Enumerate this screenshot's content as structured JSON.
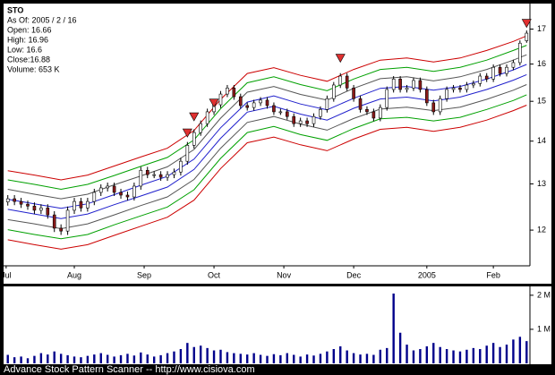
{
  "chart_data": {
    "type": "candlestick",
    "symbol": "STO",
    "info": [
      "As Of: 2005 / 2 / 16",
      "Open: 16.66",
      "High: 16.96",
      "Low: 16.6",
      "Close:16.88",
      "Volume: 653 K"
    ],
    "log_scale": true,
    "up_color": "#ffffff",
    "down_color": "#8b1a1a",
    "xlim": [
      -1,
      157
    ],
    "ylim": [
      11.28,
      17.74
    ],
    "xticks": [
      {
        "value": -0.5,
        "label": "Jul"
      },
      {
        "value": 20,
        "label": "Aug"
      },
      {
        "value": 41,
        "label": "Sep"
      },
      {
        "value": 62,
        "label": "Oct"
      },
      {
        "value": 83,
        "label": "Nov"
      },
      {
        "value": 104,
        "label": "Dec"
      },
      {
        "value": 126,
        "label": "2005"
      },
      {
        "value": 146,
        "label": "Feb"
      }
    ],
    "yticks": [
      12,
      13,
      14,
      15,
      16,
      17
    ],
    "x": [
      0,
      2,
      4,
      6,
      8,
      10,
      12,
      14,
      16,
      18,
      20,
      22,
      24,
      26,
      28,
      30,
      32,
      34,
      36,
      38,
      40,
      42,
      44,
      46,
      48,
      50,
      52,
      54,
      56,
      58,
      60,
      62,
      64,
      66,
      68,
      70,
      72,
      74,
      76,
      78,
      80,
      82,
      84,
      86,
      88,
      90,
      92,
      94,
      96,
      98,
      100,
      102,
      104,
      106,
      108,
      110,
      112,
      114,
      116,
      118,
      120,
      122,
      124,
      126,
      128,
      130,
      132,
      134,
      136,
      138,
      140,
      142,
      144,
      146,
      148,
      150,
      152,
      154,
      156
    ],
    "open": [
      12.6,
      12.67,
      12.61,
      12.55,
      12.51,
      12.42,
      12.47,
      12.32,
      12.04,
      11.98,
      12.42,
      12.61,
      12.47,
      12.61,
      12.81,
      12.91,
      12.95,
      12.81,
      12.75,
      12.71,
      12.95,
      13.31,
      13.21,
      13.21,
      13.15,
      13.21,
      13.27,
      13.52,
      13.9,
      14.21,
      14.43,
      14.73,
      14.91,
      15.19,
      15.35,
      15.12,
      14.89,
      14.84,
      14.96,
      15.03,
      14.89,
      14.73,
      14.73,
      14.61,
      14.43,
      14.5,
      14.43,
      14.61,
      14.79,
      15.07,
      15.43,
      15.67,
      15.35,
      15.07,
      14.79,
      14.73,
      14.57,
      14.84,
      15.31,
      15.59,
      15.31,
      15.35,
      15.55,
      15.31,
      14.96,
      14.73,
      15.07,
      15.31,
      15.35,
      15.31,
      15.43,
      15.47,
      15.67,
      15.59,
      15.91,
      15.74,
      15.91,
      16.04,
      16.66
    ],
    "high": [
      12.75,
      12.75,
      12.69,
      12.63,
      12.59,
      12.55,
      12.55,
      12.4,
      12.12,
      12.5,
      12.69,
      12.69,
      12.69,
      12.89,
      12.99,
      13.03,
      13.03,
      12.89,
      12.83,
      13.03,
      13.39,
      13.39,
      13.29,
      13.29,
      13.29,
      13.35,
      13.6,
      13.98,
      14.29,
      14.51,
      14.81,
      14.99,
      15.27,
      15.43,
      15.43,
      15.2,
      14.97,
      15.04,
      15.11,
      15.11,
      14.97,
      14.81,
      14.81,
      14.69,
      14.58,
      14.58,
      14.69,
      14.87,
      15.15,
      15.51,
      15.75,
      15.75,
      15.43,
      15.15,
      14.87,
      14.81,
      14.92,
      15.39,
      15.67,
      15.67,
      15.43,
      15.63,
      15.63,
      15.39,
      15.04,
      15.15,
      15.39,
      15.43,
      15.43,
      15.51,
      15.55,
      15.75,
      15.75,
      15.99,
      15.99,
      15.99,
      16.12,
      16.67,
      16.96
    ],
    "low": [
      12.52,
      12.53,
      12.47,
      12.43,
      12.34,
      12.34,
      12.24,
      11.96,
      11.9,
      11.9,
      12.34,
      12.39,
      12.39,
      12.53,
      12.73,
      12.83,
      12.73,
      12.67,
      12.63,
      12.63,
      12.87,
      13.13,
      13.13,
      13.07,
      13.07,
      13.13,
      13.19,
      13.44,
      13.82,
      14.13,
      14.35,
      14.65,
      14.83,
      15.11,
      15.04,
      14.81,
      14.76,
      14.76,
      14.88,
      14.81,
      14.65,
      14.65,
      14.53,
      14.35,
      14.35,
      14.35,
      14.35,
      14.53,
      14.71,
      14.99,
      15.35,
      15.27,
      14.99,
      14.71,
      14.65,
      14.49,
      14.49,
      14.76,
      15.23,
      15.23,
      15.23,
      15.27,
      15.23,
      14.88,
      14.65,
      14.65,
      14.99,
      15.23,
      15.23,
      15.23,
      15.35,
      15.39,
      15.51,
      15.51,
      15.66,
      15.66,
      15.83,
      15.96,
      16.6
    ],
    "close": [
      12.67,
      12.61,
      12.55,
      12.51,
      12.42,
      12.47,
      12.32,
      12.04,
      11.98,
      12.42,
      12.61,
      12.47,
      12.61,
      12.81,
      12.91,
      12.95,
      12.81,
      12.75,
      12.71,
      12.95,
      13.31,
      13.21,
      13.21,
      13.15,
      13.21,
      13.27,
      13.52,
      13.9,
      14.21,
      14.43,
      14.73,
      14.91,
      15.19,
      15.35,
      15.12,
      14.89,
      14.84,
      14.96,
      15.03,
      14.89,
      14.73,
      14.73,
      14.61,
      14.43,
      14.5,
      14.43,
      14.61,
      14.79,
      15.07,
      15.43,
      15.67,
      15.35,
      15.07,
      14.79,
      14.73,
      14.57,
      14.84,
      15.31,
      15.59,
      15.31,
      15.35,
      15.55,
      15.31,
      14.96,
      14.73,
      15.07,
      15.31,
      15.35,
      15.31,
      15.43,
      15.47,
      15.67,
      15.59,
      15.91,
      15.74,
      15.91,
      16.04,
      16.59,
      16.88
    ],
    "band_x": [
      0,
      8,
      16,
      24,
      32,
      40,
      48,
      56,
      64,
      72,
      80,
      88,
      96,
      104,
      112,
      120,
      128,
      136,
      144,
      152,
      156
    ],
    "bands": [
      {
        "color": "#cc0000",
        "values": [
          13.3,
          13.2,
          13.09,
          13.2,
          13.41,
          13.62,
          13.83,
          14.26,
          15.05,
          15.74,
          15.9,
          15.69,
          15.53,
          15.85,
          16.11,
          16.17,
          16.06,
          16.17,
          16.38,
          16.64,
          16.8
        ]
      },
      {
        "color": "#00a000",
        "values": [
          13.09,
          12.99,
          12.88,
          12.99,
          13.19,
          13.4,
          13.61,
          14.03,
          14.81,
          15.49,
          15.65,
          15.44,
          15.28,
          15.59,
          15.85,
          15.91,
          15.8,
          15.91,
          16.11,
          16.38,
          16.53
        ]
      },
      {
        "color": "#555555",
        "values": [
          12.88,
          12.77,
          12.67,
          12.77,
          12.98,
          13.18,
          13.39,
          13.8,
          14.57,
          15.24,
          15.39,
          15.18,
          15.03,
          15.34,
          15.6,
          15.65,
          15.54,
          15.65,
          15.85,
          16.11,
          16.26
        ]
      },
      {
        "color": "#2020cc",
        "values": [
          12.66,
          12.56,
          12.46,
          12.56,
          12.76,
          12.97,
          13.17,
          13.57,
          14.33,
          14.98,
          15.14,
          14.93,
          14.78,
          15.08,
          15.34,
          15.39,
          15.29,
          15.39,
          15.59,
          15.84,
          15.99
        ]
      },
      {
        "color": "#2020cc",
        "values": [
          12.44,
          12.34,
          12.24,
          12.34,
          12.54,
          12.73,
          12.93,
          13.33,
          14.07,
          14.72,
          14.87,
          14.67,
          14.52,
          14.82,
          15.06,
          15.11,
          15.01,
          15.11,
          15.31,
          15.56,
          15.71
        ]
      },
      {
        "color": "#555555",
        "values": [
          12.22,
          12.13,
          12.03,
          12.13,
          12.32,
          12.52,
          12.71,
          13.1,
          13.83,
          14.46,
          14.61,
          14.42,
          14.27,
          14.56,
          14.8,
          14.85,
          14.76,
          14.85,
          15.05,
          15.29,
          15.44
        ]
      },
      {
        "color": "#00a000",
        "values": [
          12.01,
          11.91,
          11.82,
          11.91,
          12.11,
          12.3,
          12.49,
          12.87,
          13.59,
          14.21,
          14.36,
          14.16,
          14.02,
          14.31,
          14.55,
          14.59,
          14.5,
          14.59,
          14.79,
          15.02,
          15.17
        ]
      },
      {
        "color": "#cc0000",
        "values": [
          11.8,
          11.7,
          11.61,
          11.7,
          11.89,
          12.08,
          12.27,
          12.64,
          13.35,
          13.96,
          14.1,
          13.91,
          13.77,
          14.05,
          14.29,
          14.34,
          14.24,
          14.34,
          14.52,
          14.76,
          14.9
        ]
      }
    ],
    "signals": {
      "color": "#e03030",
      "x": [
        54,
        56,
        62,
        100,
        156
      ],
      "y": [
        14.1,
        14.5,
        14.85,
        16.05,
        17.05
      ]
    },
    "volume": {
      "color": "#00008b",
      "ylim": [
        0,
        2260000
      ],
      "yticks": [
        {
          "value": 1000000,
          "label": "1 M"
        },
        {
          "value": 2000000,
          "label": "2 M"
        }
      ],
      "values": [
        250000,
        180000,
        200000,
        150000,
        220000,
        300000,
        260000,
        350000,
        280000,
        240000,
        200000,
        180000,
        220000,
        260000,
        300000,
        250000,
        200000,
        240000,
        280000,
        230000,
        320000,
        260000,
        200000,
        240000,
        300000,
        350000,
        420000,
        600000,
        480000,
        520000,
        450000,
        380000,
        400000,
        330000,
        300000,
        280000,
        260000,
        300000,
        250000,
        220000,
        270000,
        240000,
        300000,
        250000,
        200000,
        260000,
        230000,
        280000,
        350000,
        420000,
        500000,
        380000,
        300000,
        260000,
        280000,
        250000,
        400000,
        450000,
        2050000,
        900000,
        550000,
        380000,
        420000,
        500000,
        600000,
        480000,
        420000,
        380000,
        350000,
        400000,
        450000,
        420000,
        520000,
        600000,
        480000,
        550000,
        700000,
        780000,
        653000
      ]
    }
  },
  "footer": "Advance Stock Pattern Scanner -- http://www.cisiova.com"
}
